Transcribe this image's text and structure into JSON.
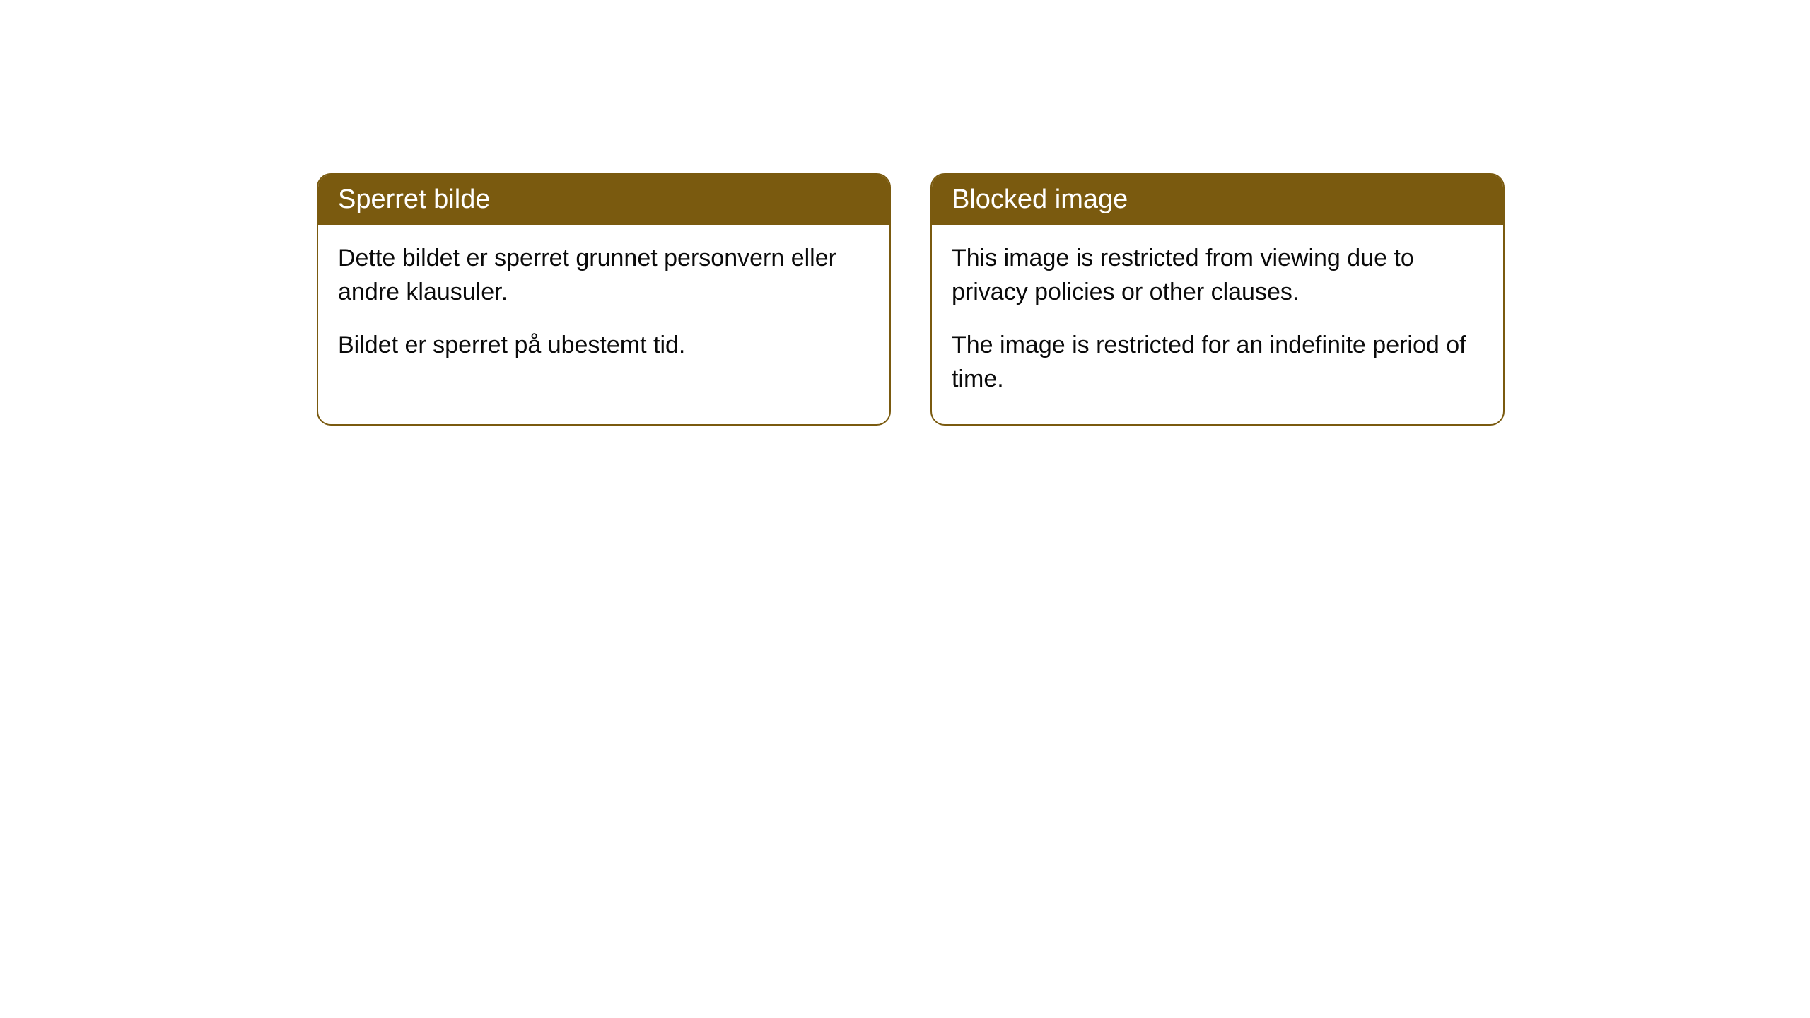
{
  "cards": [
    {
      "title": "Sperret bilde",
      "paragraph1": "Dette bildet er sperret grunnet personvern eller andre klausuler.",
      "paragraph2": "Bildet er sperret på ubestemt tid."
    },
    {
      "title": "Blocked image",
      "paragraph1": "This image is restricted from viewing due to privacy policies or other clauses.",
      "paragraph2": "The image is restricted for an indefinite period of time."
    }
  ],
  "styling": {
    "header_background": "#7a5a0f",
    "header_text_color": "#ffffff",
    "border_color": "#7a5a0f",
    "body_background": "#ffffff",
    "body_text_color": "#0a0a0a",
    "border_radius": 20,
    "title_fontsize": 38,
    "body_fontsize": 34
  }
}
